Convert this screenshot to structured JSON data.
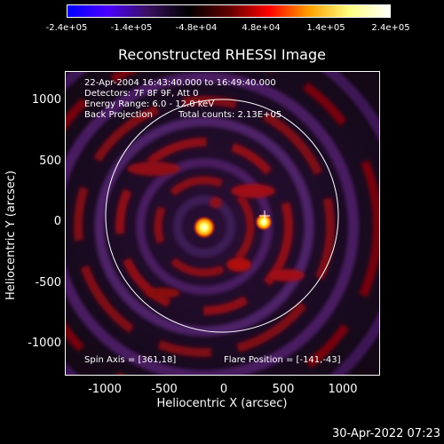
{
  "colorbar": {
    "ticks": [
      "-2.4e+05",
      "-1.4e+05",
      "-4.8e+04",
      "4.8e+04",
      "1.4e+05",
      "2.4e+05"
    ],
    "colors": [
      "#0000ff",
      "#4a00ff",
      "#3a1060",
      "#000000",
      "#600000",
      "#ff0000",
      "#ffa000",
      "#ffff80",
      "#ffffff"
    ]
  },
  "title": "Reconstructed RHESSI Image",
  "info": {
    "line1": "22-Apr-2004 16:43:40.000 to 16:49:40.000",
    "line2": "Detectors: 7F 8F 9F, Att 0",
    "line3": "Energy Range: 6.0 - 12.0 keV",
    "line4a": "Back Projection",
    "line4b": "Total counts: 2.13E+05",
    "spin_axis": "Spin Axis = [361,18]",
    "flare_position": "Flare Position = [-141,-43]"
  },
  "axes": {
    "ylabel": "Heliocentric Y (arcsec)",
    "xlabel": "Heliocentric X (arcsec)",
    "yticks": [
      "1000",
      "500",
      "0",
      "-500",
      "-1000"
    ],
    "xticks": [
      "-1000",
      "-500",
      "0",
      "500",
      "1000"
    ]
  },
  "timestamp": "30-Apr-2022 07:23"
}
